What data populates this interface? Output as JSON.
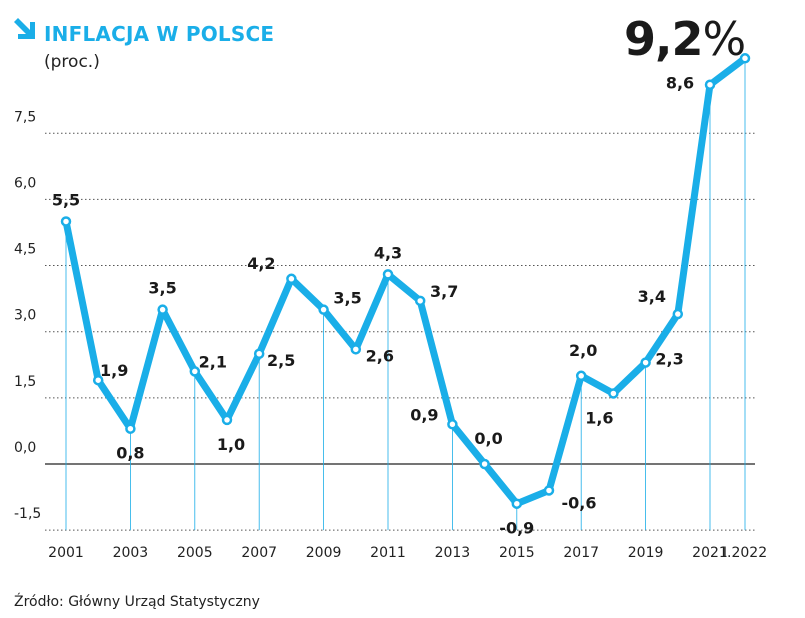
{
  "title": "INFLACJA W POLSCE",
  "subtitle": "(proc.)",
  "highlight": {
    "value": "9,2",
    "unit": "%"
  },
  "source": "Źródło: Główny Urząd Statystyczny",
  "accent_color": "#1aaee8",
  "icon": "arrow-down-right-icon",
  "chart_data": {
    "type": "line",
    "title": "INFLACJA W POLSCE",
    "ylabel": "(proc.)",
    "x": [
      "2001",
      "2002",
      "2003",
      "2004",
      "2005",
      "2006",
      "2007",
      "2008",
      "2009",
      "2010",
      "2011",
      "2012",
      "2013",
      "2014",
      "2015",
      "2016",
      "2017",
      "2018",
      "2019",
      "2020",
      "2021",
      "I.2022"
    ],
    "values": [
      5.5,
      1.9,
      0.8,
      3.5,
      2.1,
      1.0,
      2.5,
      4.2,
      3.5,
      2.6,
      4.3,
      3.7,
      0.9,
      0.0,
      -0.9,
      -0.6,
      2.0,
      1.6,
      2.3,
      3.4,
      8.6,
      9.2
    ],
    "data_labels": [
      "5,5",
      "1,9",
      "0,8",
      "3,5",
      "2,1",
      "1,0",
      "2,5",
      "4,2",
      "3,5",
      "2,6",
      "4,3",
      "3,7",
      "0,9",
      "0,0",
      "-0,9",
      "-0,6",
      "2,0",
      "1,6",
      "2,3",
      "3,4",
      "8,6",
      ""
    ],
    "x_tick_labels": [
      "2001",
      "2003",
      "2005",
      "2007",
      "2009",
      "2011",
      "2013",
      "2015",
      "2017",
      "2019",
      "2021",
      "I.2022"
    ],
    "y_ticks": [
      7.5,
      6.0,
      4.5,
      3.0,
      1.5,
      0.0,
      -1.5
    ],
    "y_tick_labels": [
      "7,5",
      "6,0",
      "4,5",
      "3,0",
      "1,5",
      "0,0",
      "-1,5"
    ],
    "ylim": [
      -1.5,
      9.2
    ],
    "grid": "dotted horizontal",
    "line_color": "#1aaee8"
  }
}
